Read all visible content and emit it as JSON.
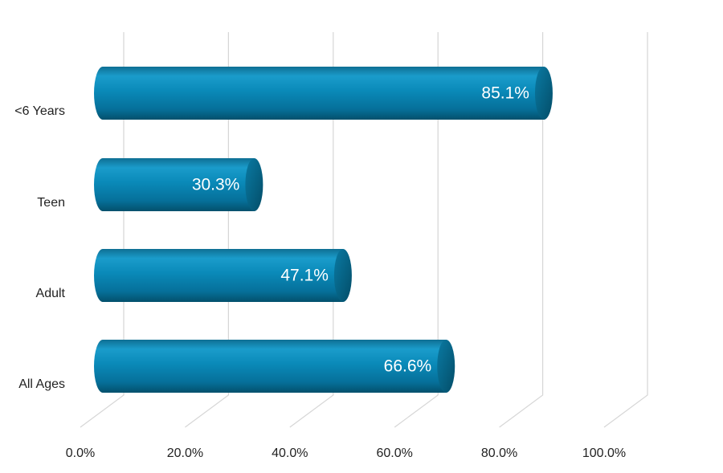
{
  "chart_data": {
    "type": "bar",
    "orientation": "horizontal",
    "style": "3d-cylinder",
    "title": "",
    "xlabel": "",
    "ylabel": "",
    "categories": [
      "<6 Years",
      "Teen",
      "Adult",
      "All Ages"
    ],
    "values": [
      85.1,
      30.3,
      47.1,
      66.6
    ],
    "value_labels": [
      "85.1%",
      "30.3%",
      "47.1%",
      "66.6%"
    ],
    "xlim": [
      0,
      100
    ],
    "xticks": [
      0,
      20,
      40,
      60,
      80,
      100
    ],
    "xtick_labels": [
      "0.0%",
      "20.0%",
      "40.0%",
      "60.0%",
      "80.0%",
      "100.0%"
    ],
    "grid": true,
    "legend": "none",
    "colors": {
      "bar_light": "#1796c4",
      "bar_mid": "#0a86b3",
      "bar_dark": "#055d7d",
      "bar_cap": "#046080",
      "grid": "#d6d6d6"
    }
  }
}
